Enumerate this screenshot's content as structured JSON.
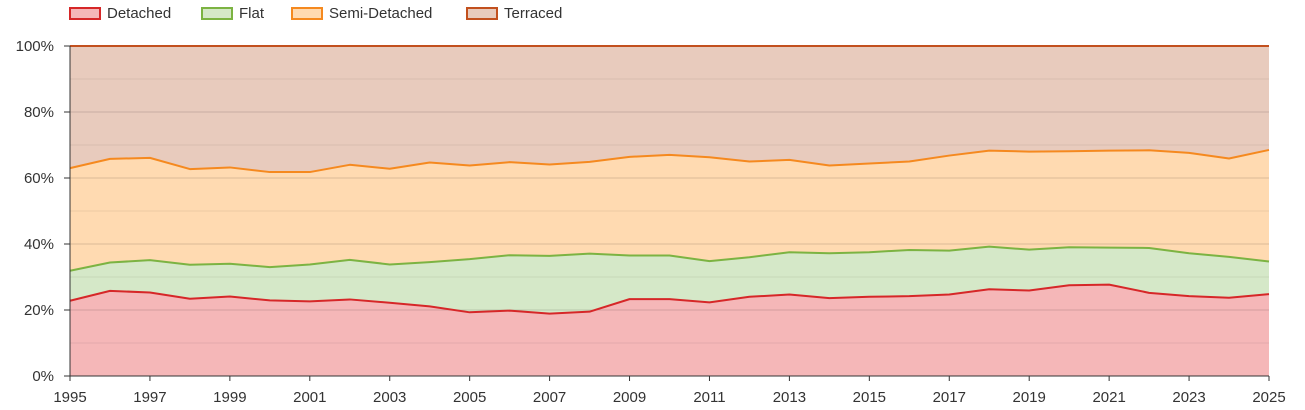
{
  "chart_data": {
    "type": "area",
    "stacked": true,
    "percent": true,
    "title": "",
    "xlabel": "",
    "ylabel": "",
    "x": [
      1995,
      1996,
      1997,
      1998,
      1999,
      2000,
      2001,
      2002,
      2003,
      2004,
      2005,
      2006,
      2007,
      2008,
      2009,
      2010,
      2011,
      2012,
      2013,
      2014,
      2015,
      2016,
      2017,
      2018,
      2019,
      2020,
      2021,
      2022,
      2023,
      2024,
      2025
    ],
    "xticks": [
      1995,
      1997,
      1999,
      2001,
      2003,
      2005,
      2007,
      2009,
      2011,
      2013,
      2015,
      2017,
      2019,
      2021,
      2023,
      2025
    ],
    "ylim": [
      0,
      100
    ],
    "yticks": [
      0,
      20,
      40,
      60,
      80,
      100
    ],
    "ytick_labels": [
      "0%",
      "20%",
      "40%",
      "60%",
      "80%",
      "100%"
    ],
    "grid": true,
    "legend_position": "top-left",
    "series": [
      {
        "name": "Detached",
        "line_color": "#d62728",
        "fill_color": "#f5b7b8",
        "values": [
          22.8,
          25.8,
          25.3,
          23.4,
          24.1,
          22.9,
          22.6,
          23.2,
          22.2,
          21.1,
          19.3,
          19.8,
          18.9,
          19.5,
          23.3,
          23.3,
          22.3,
          24.0,
          24.7,
          23.6,
          24.0,
          24.2,
          24.7,
          26.3,
          25.9,
          27.5,
          27.7,
          25.2,
          24.2,
          23.7,
          24.8
        ]
      },
      {
        "name": "Flat",
        "line_color": "#7cb342",
        "fill_color": "#d5e8c8",
        "values": [
          9.1,
          8.6,
          9.8,
          10.3,
          9.9,
          10.1,
          11.2,
          12.0,
          11.6,
          13.4,
          16.1,
          16.8,
          17.5,
          17.6,
          13.2,
          13.2,
          12.5,
          12.0,
          12.8,
          13.6,
          13.5,
          14.0,
          13.3,
          12.9,
          12.4,
          11.5,
          11.2,
          13.6,
          13.0,
          12.4,
          9.9
        ]
      },
      {
        "name": "Semi-Detached",
        "line_color": "#f5891f",
        "fill_color": "#ffdab1",
        "values": [
          31.1,
          31.4,
          31.0,
          29.0,
          29.2,
          28.8,
          28.0,
          28.8,
          29.0,
          30.2,
          28.4,
          28.2,
          27.7,
          27.8,
          29.9,
          30.5,
          31.5,
          29.0,
          28.0,
          26.6,
          26.9,
          26.8,
          28.8,
          29.1,
          29.7,
          29.1,
          29.4,
          29.6,
          30.4,
          29.8,
          33.8
        ]
      },
      {
        "name": "Terraced",
        "line_color": "#c2501e",
        "fill_color": "#e8cbbd",
        "values": [
          37.0,
          34.2,
          33.9,
          37.3,
          36.8,
          38.2,
          38.2,
          36.0,
          37.2,
          35.3,
          36.2,
          35.2,
          35.9,
          35.1,
          33.6,
          33.0,
          33.7,
          35.0,
          34.5,
          36.2,
          35.6,
          35.0,
          33.2,
          31.7,
          32.0,
          31.9,
          31.7,
          31.6,
          32.4,
          34.1,
          31.5
        ]
      }
    ]
  }
}
